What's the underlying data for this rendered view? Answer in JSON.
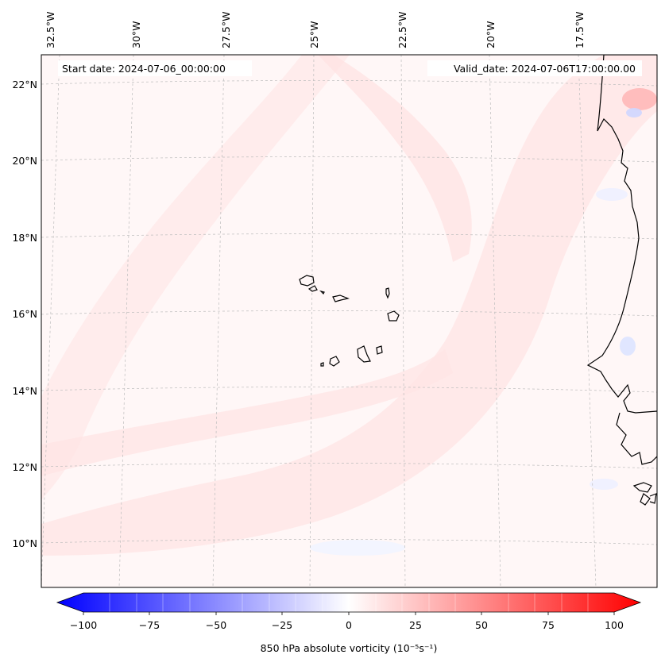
{
  "header": {
    "start_date": "Start date: 2024-07-06_00:00:00",
    "valid_date": "Valid_date: 2024-07-06T17:00:00.00"
  },
  "map": {
    "variable": "850 hPa absolute vorticity",
    "lon_labels": [
      "32.5°W",
      "30°W",
      "27.5°W",
      "25°W",
      "22.5°W",
      "20°W",
      "17.5°W"
    ],
    "lat_labels": [
      "22°N",
      "20°N",
      "18°N",
      "16°N",
      "14°N",
      "12°N",
      "10°N"
    ],
    "gridlines": "dashed"
  },
  "colorbar": {
    "label": "850 hPa absolute vorticity (10⁻⁵s⁻¹)",
    "ticks": [
      "−100",
      "−75",
      "−50",
      "−25",
      "0",
      "25",
      "50",
      "75",
      "100"
    ],
    "colormap": "bwr",
    "min": -100,
    "max": 100,
    "extend": "both",
    "colors": {
      "negative": "#0000ff",
      "zero": "#ffffff",
      "positive": "#ff0000"
    }
  }
}
